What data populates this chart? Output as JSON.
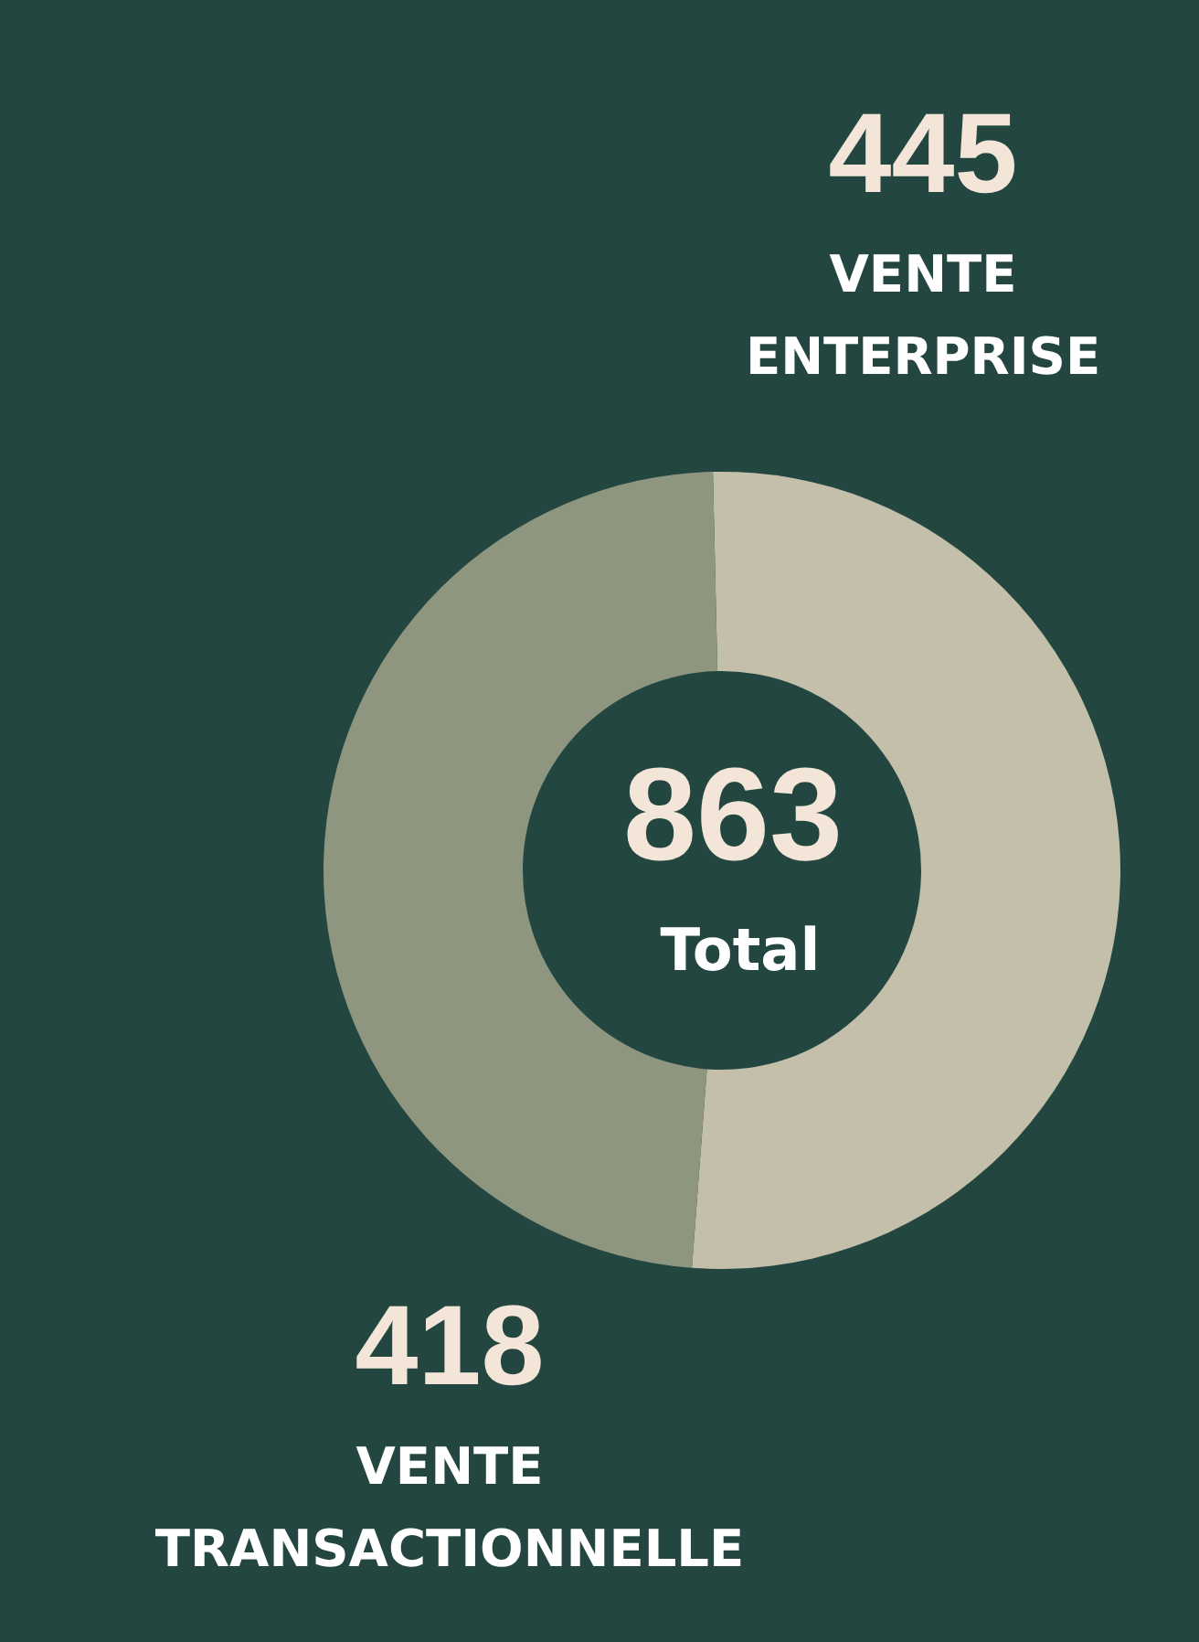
{
  "chart_data": {
    "type": "donut",
    "categories": [
      "VENTE ENTERPRISE",
      "VENTE TRANSACTIONNELLE"
    ],
    "values": [
      445,
      418
    ],
    "colors": [
      "#c3bfab",
      "#8f9680"
    ],
    "data_labels": true,
    "legend": false,
    "annotations": [
      "863",
      "Total"
    ]
  }
}
